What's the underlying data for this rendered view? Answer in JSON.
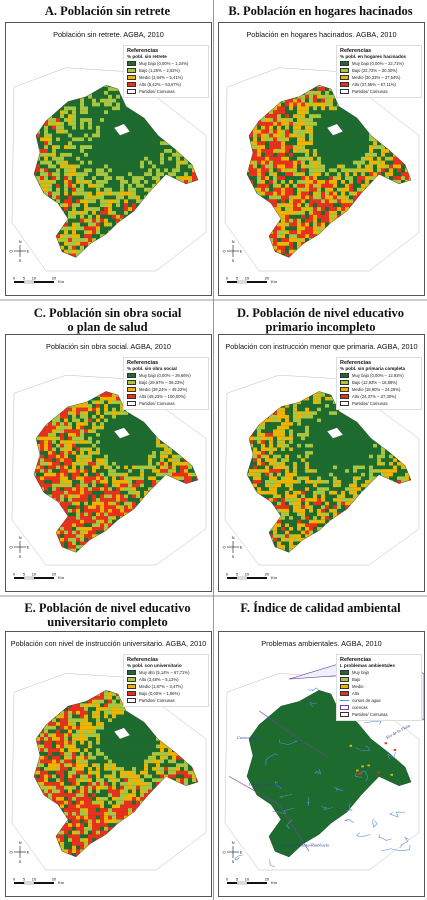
{
  "colors": {
    "very_low": "#1e6b2f",
    "low": "#a8c640",
    "medium": "#f0b400",
    "high": "#e8301c",
    "border": "#555555"
  },
  "panels": [
    {
      "title_line1": "A. Población sin retrete",
      "title_line2": "",
      "subtitle": "Población sin retrete. AGBA, 2010",
      "legend_title": "Referencias",
      "legend_subtitle": "% pobl. sin retrete",
      "items": [
        {
          "label": "Muy bajo (0,00% – 1,24%)",
          "color": "#1e6b2f"
        },
        {
          "label": "Bajo (1,25% – 2,82%)",
          "color": "#a8c640"
        },
        {
          "label": "Medio (2,84% – 5,41%)",
          "color": "#f0b400"
        },
        {
          "label": "Alto (5,42% – 53,87%)",
          "color": "#e8301c"
        },
        {
          "label": "Partidos/ Comunas",
          "color": "#ffffff"
        }
      ]
    },
    {
      "title_line1": "B. Población en hogares hacinados",
      "title_line2": "",
      "subtitle": "Población en hogares hacinados. AGBA, 2010",
      "legend_title": "Referencias",
      "legend_subtitle": "% pobl. en hogares hacinados",
      "items": [
        {
          "label": "Muy bajo (0,00% – 22,71%)",
          "color": "#1e6b2f"
        },
        {
          "label": "Bajo (22,72% – 30,30%)",
          "color": "#a8c640"
        },
        {
          "label": "Medio (30,33% – 37,54%)",
          "color": "#f0b400"
        },
        {
          "label": "Alto (37,55% – 67,11%)",
          "color": "#e8301c"
        },
        {
          "label": "Partidos/ Comunas",
          "color": "#ffffff"
        }
      ]
    },
    {
      "title_line1": "C. Población sin obra social",
      "title_line2": "o plan de salud",
      "subtitle": "Población sin obra social. AGBA, 2010",
      "legend_title": "Referencias",
      "legend_subtitle": "% pobl. sin obra social",
      "items": [
        {
          "label": "Muy bajo (0,00% – 29,66%)",
          "color": "#1e6b2f"
        },
        {
          "label": "Bajo (29,67% – 39,23%)",
          "color": "#a8c640"
        },
        {
          "label": "Medio (39,24% – 49,22%)",
          "color": "#f0b400"
        },
        {
          "label": "Alto (49,23% – 100,00%)",
          "color": "#e8301c"
        },
        {
          "label": "Partidos/ Comunas",
          "color": "#ffffff"
        }
      ]
    },
    {
      "title_line1": "D. Población de nivel educativo",
      "title_line2": "primario incompleto",
      "subtitle": "Población con instrucción menor que primaria. AGBA, 2010",
      "legend_title": "Referencias",
      "legend_subtitle": "% pobl. sin primaria completa",
      "items": [
        {
          "label": "Muy bajo (0,00% – 12,92%)",
          "color": "#1e6b2f"
        },
        {
          "label": "Bajo (12,93% – 18,88%)",
          "color": "#a8c640"
        },
        {
          "label": "Medio (18,90% – 24,26%)",
          "color": "#f0b400"
        },
        {
          "label": "Alto (24,37% – 37,30%)",
          "color": "#e8301c"
        },
        {
          "label": "Partidos/ Comunas",
          "color": "#ffffff"
        }
      ]
    },
    {
      "title_line1": "E. Población de nivel educativo",
      "title_line2": "universitario completo",
      "subtitle": "Población con nivel de instrucción universitario. AGBA, 2010",
      "legend_title": "Referencias",
      "legend_subtitle": "% pobl. con universitario",
      "items": [
        {
          "label": "Muy alto (5,14% – 67,71%)",
          "color": "#1e6b2f"
        },
        {
          "label": "Alto (3,48% – 5,13%)",
          "color": "#a8c640"
        },
        {
          "label": "Medio (1,87% – 3,47%)",
          "color": "#f0b400"
        },
        {
          "label": "Bajo (0,00% – 1,86%)",
          "color": "#e8301c"
        },
        {
          "label": "Partidos/ Comunas",
          "color": "#ffffff"
        }
      ]
    },
    {
      "title_line1": "F. Índice de calidad ambiental",
      "title_line2": "",
      "subtitle": "Problemas ambientales. AGBA, 2010",
      "legend_title": "Referencias",
      "legend_subtitle": "I. problemas ambientales",
      "items": [
        {
          "label": "Muy bajo",
          "color": "#1e6b2f"
        },
        {
          "label": "Bajo",
          "color": "#a8c640"
        },
        {
          "label": "Medio",
          "color": "#f0b400"
        },
        {
          "label": "Alto",
          "color": "#e8301c"
        },
        {
          "label": "cursos de agua",
          "color": "line-blue"
        },
        {
          "label": "cuencas",
          "color": "box-purple"
        },
        {
          "label": "Partidos/ Comunas",
          "color": "#ffffff"
        }
      ],
      "map_labels": [
        "Río de la Plata",
        "Cuenca Luján",
        "Cuenca Reconquista",
        "Cuenca Matanza-Riachuelo"
      ]
    }
  ],
  "scale": {
    "ticks": [
      "0",
      "5",
      "10",
      "20"
    ],
    "unit": "Km"
  },
  "north": {
    "letters": [
      "N",
      "O",
      "E",
      "S"
    ]
  }
}
